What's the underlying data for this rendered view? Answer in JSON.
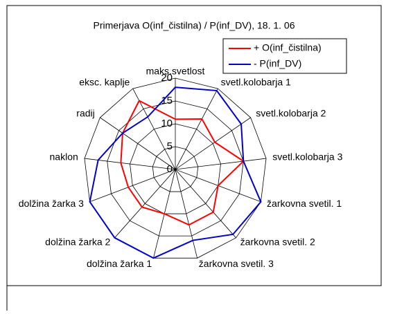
{
  "chart_data": {
    "type": "radar",
    "title": "Primerjava O(inf_čistilna) / P(inf_DV), 18. 1. 06",
    "categories": [
      "maks.svetlost",
      "svetl.kolobarja 1",
      "svetl.kolobarja 2",
      "svetl.kolobarja 3",
      "žarkovna svetil. 1",
      "žarkovna svetil. 2",
      "žarkovna svetil. 3",
      "dolžina žarka 1",
      "dolžina žarka 2",
      "dolžina žarka 3",
      "naklon",
      "radij",
      "eksc. kaplje"
    ],
    "series": [
      {
        "name": "+ O(inf_čistilna)",
        "color": "#ff0000",
        "values": [
          11,
          12.5,
          10.5,
          15,
          10,
          12.5,
          12.5,
          10,
          11,
          11,
          12,
          14,
          17
        ]
      },
      {
        "name": "- P(inf_DV)",
        "color": "#0000cc",
        "values": [
          18,
          19.5,
          17.5,
          15,
          20,
          19,
          16,
          20,
          20,
          20,
          17,
          14,
          13
        ]
      }
    ],
    "ylim": [
      0,
      20
    ],
    "yticks": [
      0,
      5,
      10,
      15,
      20
    ],
    "grid": true,
    "legend": "top-right"
  }
}
